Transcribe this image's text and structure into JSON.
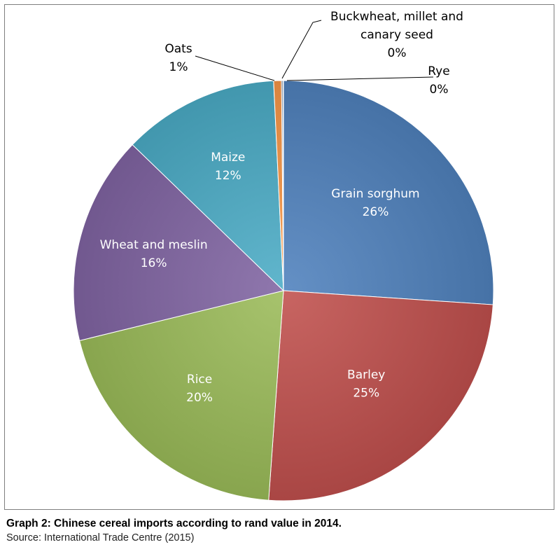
{
  "chart_data": {
    "type": "pie",
    "title": "",
    "slices": [
      {
        "name": "Grain sorghum",
        "value": 26,
        "label": "26%",
        "color": "#4f81bd"
      },
      {
        "name": "Barley",
        "value": 25,
        "label": "25%",
        "color": "#c0504d"
      },
      {
        "name": "Rice",
        "value": 20,
        "label": "20%",
        "color": "#9bbb59"
      },
      {
        "name": "Wheat and meslin",
        "value": 16,
        "label": "16%",
        "color": "#8064a2"
      },
      {
        "name": "Maize",
        "value": 12,
        "label": "12%",
        "color": "#4bacc6"
      },
      {
        "name": "Oats",
        "value": 0.6,
        "label": "1%",
        "color": "#f79646"
      },
      {
        "name": "Buckwheat, millet and canary seed",
        "value": 0.1,
        "label": "0%",
        "color": "#2c4d75"
      },
      {
        "name": "Rye",
        "value": 0.05,
        "label": "0%",
        "color": "#772c2a"
      }
    ],
    "legend": "none"
  },
  "caption": {
    "title": "Graph 2: Chinese cereal imports according to rand value in 2014.",
    "source": "Source: International Trade Centre (2015)"
  }
}
